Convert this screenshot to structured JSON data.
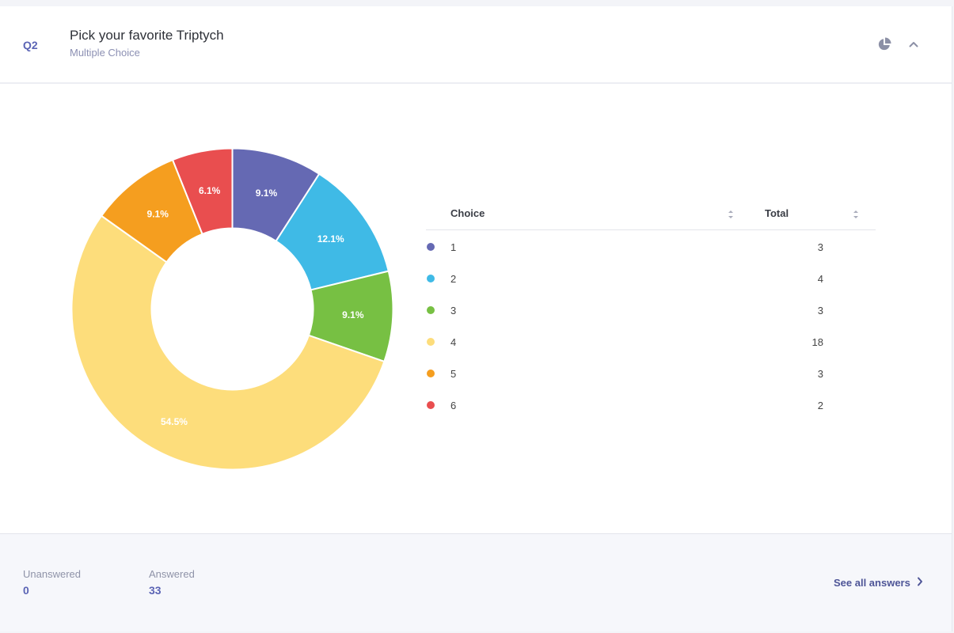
{
  "question": {
    "number": "Q2",
    "title": "Pick your favorite Triptych",
    "type": "Multiple Choice"
  },
  "icons": {
    "chart_toggle": "pie-chart-icon",
    "collapse": "chevron-up-icon",
    "sort": "sort-icon",
    "see_all": "chevron-right-icon"
  },
  "colors": {
    "accent": "#5b64b5",
    "slice_label": "#ffffff"
  },
  "table": {
    "headers": {
      "choice": "Choice",
      "total": "Total"
    },
    "rows": [
      {
        "choice": "1",
        "total": "3",
        "color": "#6569b3"
      },
      {
        "choice": "2",
        "total": "4",
        "color": "#3fbae6"
      },
      {
        "choice": "3",
        "total": "3",
        "color": "#77c043"
      },
      {
        "choice": "4",
        "total": "18",
        "color": "#fddd7b"
      },
      {
        "choice": "5",
        "total": "3",
        "color": "#f59e1f"
      },
      {
        "choice": "6",
        "total": "2",
        "color": "#e94e4f"
      }
    ]
  },
  "chart_data": {
    "type": "pie",
    "donut": true,
    "categories": [
      "1",
      "2",
      "3",
      "4",
      "5",
      "6"
    ],
    "values": [
      3,
      4,
      3,
      18,
      3,
      2
    ],
    "labels": [
      "9.1%",
      "12.1%",
      "9.1%",
      "54.5%",
      "9.1%",
      "6.1%"
    ],
    "colors": [
      "#6569b3",
      "#3fbae6",
      "#77c043",
      "#fddd7b",
      "#f59e1f",
      "#e94e4f"
    ],
    "legend": "right"
  },
  "footer": {
    "unanswered_label": "Unanswered",
    "unanswered_value": "0",
    "answered_label": "Answered",
    "answered_value": "33",
    "see_all_label": "See all answers"
  }
}
